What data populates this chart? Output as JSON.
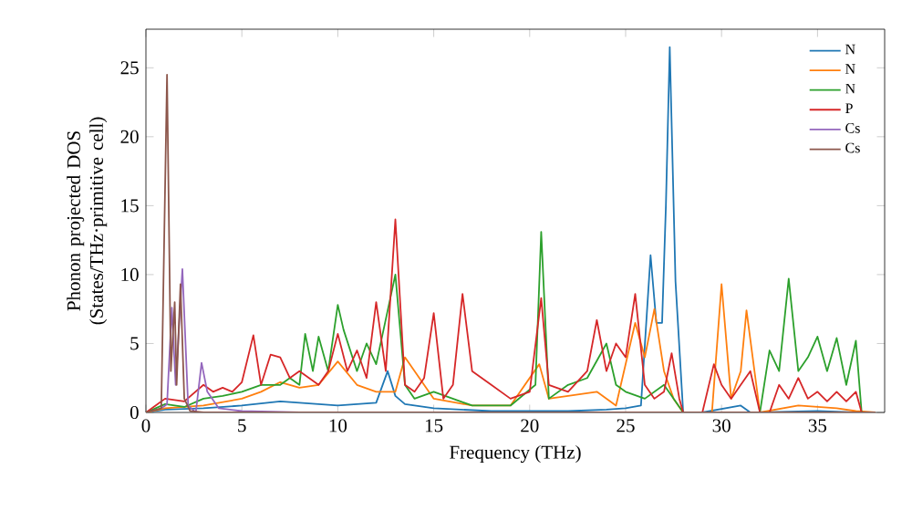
{
  "chart_data": {
    "type": "line",
    "xlabel": "Frequency (THz)",
    "ylabel": "Phonon projected DOS (States/THz·primitive cell)",
    "xlim": [
      0,
      38.5
    ],
    "ylim": [
      0,
      27.8
    ],
    "xticks": [
      0,
      5,
      10,
      15,
      20,
      25,
      30,
      35
    ],
    "yticks": [
      0,
      5,
      10,
      15,
      20,
      25
    ],
    "legend": "top right",
    "marker": "none",
    "line_style": "solid",
    "series": [
      {
        "name": "N",
        "color": "#1f77b4",
        "x": [
          0,
          1,
          3,
          5,
          7,
          9,
          10,
          11,
          12,
          12.6,
          13,
          13.5,
          15,
          18,
          20,
          22,
          24,
          25,
          25.8,
          26.3,
          26.6,
          26.9,
          27.1,
          27.3,
          27.6,
          28,
          29,
          31,
          31.5,
          32,
          35,
          37,
          38
        ],
        "values": [
          0,
          0.2,
          0.3,
          0.5,
          0.8,
          0.6,
          0.5,
          0.6,
          0.7,
          3,
          1.2,
          0.6,
          0.3,
          0.1,
          0.1,
          0.1,
          0.2,
          0.3,
          0.5,
          11.4,
          6.5,
          6.5,
          15,
          26.5,
          9.5,
          0,
          0,
          0.5,
          0,
          0,
          0.1,
          0,
          0
        ]
      },
      {
        "name": "N",
        "color": "#ff7f0e",
        "x": [
          0,
          1,
          3,
          5,
          6,
          7,
          8,
          9,
          10,
          11,
          12,
          13,
          13.5,
          15,
          17,
          19,
          20.5,
          21,
          22,
          23.5,
          24.5,
          25.5,
          26,
          26.5,
          27,
          27.5,
          28,
          29.5,
          30,
          30.5,
          31,
          31.3,
          32,
          34,
          36,
          37,
          38
        ],
        "values": [
          0,
          0.3,
          0.5,
          1,
          1.5,
          2.2,
          1.8,
          2,
          3.7,
          2,
          1.5,
          1.5,
          4,
          1,
          0.5,
          0.5,
          3.5,
          1,
          1.2,
          1.5,
          0.5,
          6.5,
          4,
          7.5,
          3,
          1,
          0,
          0,
          9.3,
          1,
          3,
          7.4,
          0,
          0.5,
          0.3,
          0.1,
          0
        ]
      },
      {
        "name": "N",
        "color": "#2ca02c",
        "x": [
          0,
          1,
          2,
          3,
          4,
          5,
          6,
          7,
          7.5,
          8,
          8.3,
          8.7,
          9,
          9.5,
          10,
          10.3,
          11,
          11.5,
          12,
          13,
          13.5,
          14,
          15,
          17,
          19,
          20.3,
          20.6,
          21,
          22,
          23,
          24,
          24.5,
          25,
          26,
          27,
          28,
          30,
          32,
          32.5,
          33,
          33.5,
          34,
          34.5,
          35,
          35.5,
          36,
          36.5,
          37,
          37.3,
          38
        ],
        "values": [
          0,
          0.6,
          0.4,
          1,
          1.2,
          1.5,
          2,
          2,
          2.5,
          2,
          5.7,
          3,
          5.5,
          3,
          7.8,
          6,
          3,
          5,
          3.5,
          10,
          2,
          1,
          1.5,
          0.5,
          0.5,
          2,
          13.1,
          1,
          2,
          2.5,
          5,
          2,
          1.5,
          1,
          2,
          0,
          0,
          0,
          4.5,
          3,
          9.7,
          3,
          4,
          5.5,
          3,
          5.4,
          2,
          5.2,
          0,
          0
        ]
      },
      {
        "name": "P",
        "color": "#d62728",
        "x": [
          0,
          0.5,
          1,
          2,
          3,
          3.5,
          4,
          4.5,
          5,
          5.6,
          6,
          6.5,
          7,
          7.5,
          8,
          8.5,
          9,
          9.5,
          10,
          10.5,
          11,
          11.5,
          12,
          12.5,
          13,
          13.5,
          14,
          14.5,
          15,
          15.5,
          16,
          16.5,
          17,
          18,
          19,
          20,
          20.6,
          21,
          22,
          23,
          23.5,
          24,
          24.5,
          25,
          25.5,
          26,
          26.5,
          27,
          27.4,
          27.8,
          28,
          29,
          29.6,
          30,
          30.5,
          31,
          31.5,
          32,
          32.5,
          33,
          33.5,
          34,
          34.5,
          35,
          35.5,
          36,
          36.5,
          37,
          37.3,
          38
        ],
        "values": [
          0,
          0.5,
          1,
          0.8,
          2,
          1.5,
          1.8,
          1.5,
          2.2,
          5.6,
          2,
          4.2,
          4,
          2.5,
          3,
          2.5,
          2,
          3,
          5.7,
          3,
          4.5,
          2.5,
          8,
          3,
          14,
          2,
          1.5,
          2.5,
          7.2,
          1,
          2,
          8.6,
          3,
          2,
          1,
          1.5,
          8.3,
          2,
          1.5,
          3,
          6.7,
          3,
          5,
          4,
          8.6,
          2,
          1,
          1.5,
          4.3,
          1,
          0,
          0,
          3.5,
          2,
          1,
          2,
          3,
          0,
          0,
          2,
          1,
          2.5,
          1,
          1.5,
          0.8,
          1.5,
          0.8,
          1.5,
          0,
          0
        ]
      },
      {
        "name": "Cs",
        "color": "#9467bd",
        "x": [
          0.8,
          1.1,
          1.35,
          1.55,
          1.9,
          2.2,
          2.6,
          2.9,
          3.2,
          3.8,
          5,
          8
        ],
        "values": [
          0.3,
          0.6,
          7.6,
          2,
          10.4,
          0.5,
          0,
          3.6,
          1.5,
          0.3,
          0.1,
          0
        ]
      },
      {
        "name": "Cs",
        "color": "#8c564b",
        "x": [
          0,
          0.8,
          1.1,
          1.3,
          1.5,
          1.6,
          1.8,
          2.0,
          2.3,
          3,
          10,
          20,
          30,
          38
        ],
        "values": [
          0,
          0.3,
          24.5,
          3,
          8,
          2,
          9.3,
          1,
          0.1,
          0,
          0,
          0,
          0,
          0
        ]
      }
    ]
  }
}
